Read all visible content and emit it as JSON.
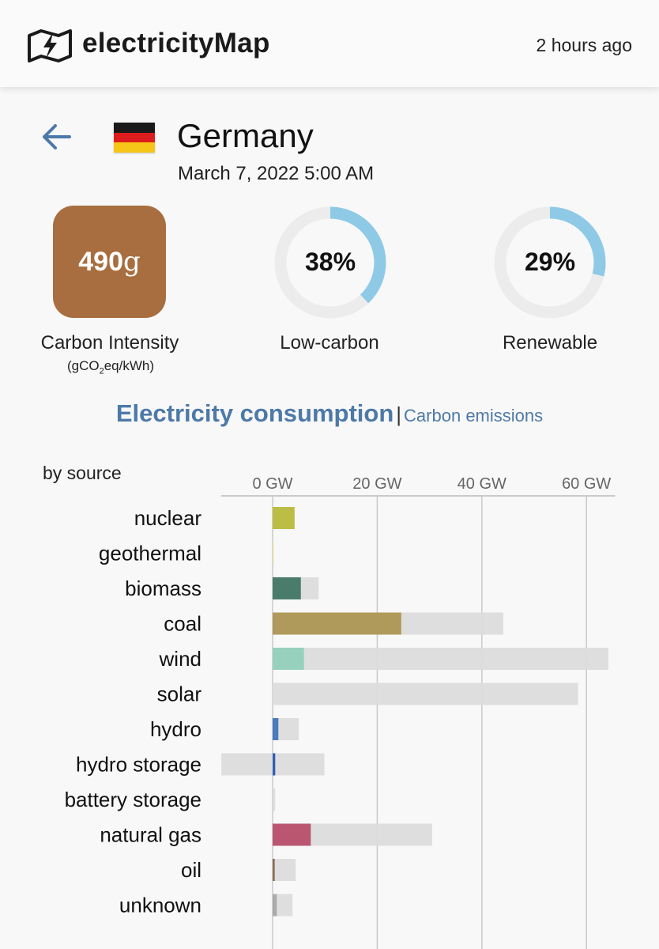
{
  "header": {
    "app_name": "electricityMap",
    "last_updated": "2 hours ago",
    "logo_icon": "lightning-map-icon"
  },
  "zone": {
    "back_icon": "arrow-left-icon",
    "country": "Germany",
    "flag_colors": [
      "#1a1a1a",
      "#dd1d1d",
      "#f5c518"
    ],
    "datetime": "March 7, 2022 5:00 AM"
  },
  "metrics": {
    "carbon_intensity": {
      "value": "490",
      "unit": "g",
      "color": "#a86e3f",
      "label": "Carbon Intensity",
      "unit_prefix": "(gCO",
      "unit_sub": "2",
      "unit_suffix": "eq/kWh)"
    },
    "low_carbon": {
      "value": "38%",
      "fraction": 0.38,
      "label": "Low-carbon"
    },
    "renewable": {
      "value": "29%",
      "fraction": 0.29,
      "label": "Renewable"
    },
    "gauge_color": "#8ecae6",
    "gauge_track": "#ececec"
  },
  "tabs": {
    "active": "Electricity consumption",
    "separator": "|",
    "inactive": "Carbon emissions"
  },
  "chart_data": {
    "type": "bar",
    "orientation": "horizontal",
    "title": "by source",
    "x_unit": "GW",
    "xlim": [
      -10,
      65
    ],
    "x_ticks": [
      0,
      20,
      40,
      60
    ],
    "x_tick_labels": [
      "0 GW",
      "20 GW",
      "40 GW",
      "60 GW"
    ],
    "grid": true,
    "categories": [
      "nuclear",
      "geothermal",
      "biomass",
      "coal",
      "wind",
      "solar",
      "hydro",
      "hydro storage",
      "battery storage",
      "natural gas",
      "oil",
      "unknown"
    ],
    "series": [
      {
        "role": "production",
        "values": [
          4.2,
          0.05,
          5.4,
          24.6,
          6.0,
          0,
          1.1,
          0.5,
          0,
          7.3,
          0.4,
          0.8
        ],
        "colors": [
          "#bcbd44",
          "#e8e3a0",
          "#4a7c6c",
          "#b09a5b",
          "#97d1bd",
          "#f5e050",
          "#4a7bbf",
          "#2e5fb5",
          "#999999",
          "#bb5670",
          "#8a6d50",
          "#aaaaaa"
        ]
      },
      {
        "role": "capacity",
        "min": [
          0,
          0,
          0,
          0,
          0,
          0,
          0,
          -9.8,
          0,
          0,
          0,
          0
        ],
        "max": [
          4.2,
          0.05,
          8.8,
          44.1,
          64.2,
          58.4,
          5.0,
          9.9,
          0.5,
          30.5,
          4.4,
          3.8
        ],
        "color": "#dcdcdc"
      }
    ]
  }
}
